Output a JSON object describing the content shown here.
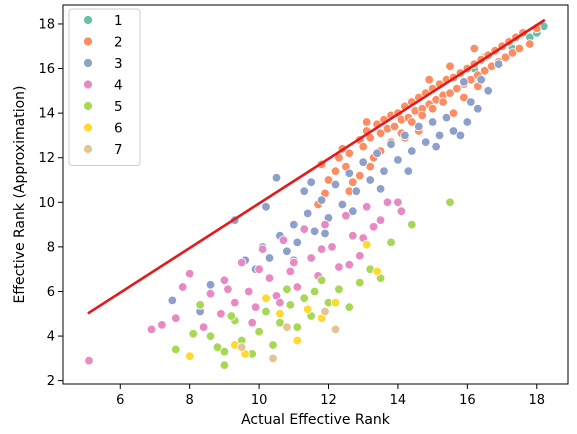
{
  "chart_data": {
    "type": "scatter",
    "xlabel": "Actual Effective Rank",
    "ylabel": "Effective Rank (Approximation)",
    "xlim": [
      4.35,
      18.9
    ],
    "ylim": [
      1.85,
      18.85
    ],
    "x_ticks": [
      6,
      8,
      10,
      12,
      14,
      16,
      18
    ],
    "y_ticks": [
      2,
      4,
      6,
      8,
      10,
      12,
      14,
      16,
      18
    ],
    "grid": false,
    "legend_position": "top-left",
    "series": [
      {
        "name": "1",
        "color": "#66c2a5",
        "points": [
          [
            16.2,
            16.0
          ],
          [
            16.5,
            16.5
          ],
          [
            17.3,
            16.9
          ],
          [
            17.8,
            17.4
          ],
          [
            18.0,
            17.6
          ],
          [
            18.2,
            17.9
          ]
        ]
      },
      {
        "name": "2",
        "color": "#fc8d62",
        "points": [
          [
            11.7,
            9.9
          ],
          [
            11.9,
            10.4
          ],
          [
            12.0,
            11.0
          ],
          [
            12.2,
            11.4
          ],
          [
            12.3,
            12.0
          ],
          [
            12.5,
            11.6
          ],
          [
            12.6,
            12.2
          ],
          [
            12.9,
            12.8
          ],
          [
            13.0,
            12.5
          ],
          [
            13.1,
            13.2
          ],
          [
            13.2,
            12.9
          ],
          [
            13.4,
            13.5
          ],
          [
            13.5,
            13.1
          ],
          [
            13.6,
            13.7
          ],
          [
            13.7,
            13.3
          ],
          [
            13.8,
            13.9
          ],
          [
            13.9,
            13.4
          ],
          [
            14.0,
            14.0
          ],
          [
            14.1,
            13.7
          ],
          [
            14.2,
            14.3
          ],
          [
            14.3,
            13.8
          ],
          [
            14.4,
            14.5
          ],
          [
            14.5,
            14.1
          ],
          [
            14.6,
            14.7
          ],
          [
            14.7,
            14.2
          ],
          [
            14.8,
            14.9
          ],
          [
            14.9,
            14.4
          ],
          [
            15.0,
            15.1
          ],
          [
            15.1,
            14.6
          ],
          [
            15.2,
            15.3
          ],
          [
            15.3,
            14.8
          ],
          [
            15.4,
            15.5
          ],
          [
            15.5,
            14.9
          ],
          [
            15.6,
            15.6
          ],
          [
            15.7,
            15.1
          ],
          [
            15.8,
            15.8
          ],
          [
            15.9,
            15.3
          ],
          [
            16.0,
            16.0
          ],
          [
            16.1,
            15.5
          ],
          [
            16.2,
            16.2
          ],
          [
            16.3,
            15.7
          ],
          [
            16.4,
            16.4
          ],
          [
            16.5,
            15.9
          ],
          [
            16.6,
            16.6
          ],
          [
            16.7,
            16.1
          ],
          [
            16.8,
            16.8
          ],
          [
            16.9,
            16.3
          ],
          [
            17.0,
            17.0
          ],
          [
            17.1,
            16.5
          ],
          [
            17.2,
            17.2
          ],
          [
            17.3,
            16.7
          ],
          [
            17.4,
            17.4
          ],
          [
            17.5,
            16.9
          ],
          [
            17.6,
            17.6
          ],
          [
            17.8,
            17.1
          ],
          [
            18.0,
            17.8
          ],
          [
            12.6,
            10.5
          ],
          [
            12.9,
            11.2
          ],
          [
            13.2,
            11.6
          ],
          [
            13.5,
            12.3
          ],
          [
            13.8,
            12.7
          ],
          [
            14.1,
            13.1
          ],
          [
            14.4,
            13.6
          ],
          [
            14.7,
            13.9
          ],
          [
            15.0,
            14.2
          ],
          [
            15.3,
            14.5
          ],
          [
            11.8,
            11.7
          ],
          [
            12.4,
            12.4
          ],
          [
            13.1,
            13.6
          ],
          [
            14.9,
            15.5
          ],
          [
            15.5,
            16.1
          ],
          [
            16.2,
            16.9
          ],
          [
            13.3,
            12.0
          ],
          [
            14.6,
            13.2
          ],
          [
            15.9,
            14.7
          ],
          [
            13.0,
            11.8
          ],
          [
            16.3,
            15.2
          ],
          [
            14.2,
            12.9
          ],
          [
            12.7,
            10.9
          ],
          [
            15.6,
            14.0
          ]
        ]
      },
      {
        "name": "3",
        "color": "#8da0cb",
        "points": [
          [
            7.5,
            5.6
          ],
          [
            7.8,
            6.2
          ],
          [
            8.3,
            5.1
          ],
          [
            8.6,
            6.3
          ],
          [
            9.0,
            6.5
          ],
          [
            9.3,
            9.2
          ],
          [
            9.6,
            7.4
          ],
          [
            9.9,
            7.0
          ],
          [
            10.1,
            8.0
          ],
          [
            10.3,
            7.5
          ],
          [
            10.5,
            11.1
          ],
          [
            10.6,
            8.5
          ],
          [
            10.8,
            7.8
          ],
          [
            11.0,
            9.0
          ],
          [
            11.1,
            8.2
          ],
          [
            11.3,
            10.5
          ],
          [
            11.4,
            9.5
          ],
          [
            11.6,
            8.7
          ],
          [
            11.8,
            10.1
          ],
          [
            12.0,
            9.3
          ],
          [
            12.2,
            10.8
          ],
          [
            12.4,
            9.9
          ],
          [
            12.6,
            11.3
          ],
          [
            12.8,
            10.5
          ],
          [
            13.0,
            11.8
          ],
          [
            13.2,
            11.0
          ],
          [
            13.4,
            12.2
          ],
          [
            13.6,
            11.4
          ],
          [
            13.8,
            12.6
          ],
          [
            14.0,
            11.9
          ],
          [
            14.2,
            13.0
          ],
          [
            14.4,
            12.3
          ],
          [
            14.6,
            13.4
          ],
          [
            14.8,
            12.7
          ],
          [
            15.0,
            13.6
          ],
          [
            15.2,
            13.0
          ],
          [
            15.4,
            13.8
          ],
          [
            15.6,
            13.2
          ],
          [
            15.8,
            13.0
          ],
          [
            16.0,
            13.6
          ],
          [
            16.3,
            14.2
          ],
          [
            16.6,
            15.0
          ],
          [
            11.0,
            7.4
          ],
          [
            11.9,
            8.6
          ],
          [
            12.7,
            9.6
          ],
          [
            13.5,
            10.6
          ],
          [
            14.3,
            11.4
          ],
          [
            15.1,
            12.5
          ],
          [
            16.1,
            14.5
          ],
          [
            15.9,
            15.4
          ],
          [
            16.4,
            15.5
          ],
          [
            16.9,
            16.2
          ],
          [
            10.2,
            9.8
          ],
          [
            11.5,
            10.9
          ]
        ]
      },
      {
        "name": "4",
        "color": "#e78ac3",
        "points": [
          [
            5.1,
            2.9
          ],
          [
            6.9,
            4.3
          ],
          [
            7.2,
            4.5
          ],
          [
            7.6,
            4.8
          ],
          [
            7.8,
            6.2
          ],
          [
            8.0,
            6.8
          ],
          [
            8.3,
            5.4
          ],
          [
            8.6,
            5.9
          ],
          [
            8.9,
            5.0
          ],
          [
            9.1,
            6.1
          ],
          [
            9.3,
            5.5
          ],
          [
            9.5,
            7.3
          ],
          [
            9.7,
            6.0
          ],
          [
            9.9,
            5.3
          ],
          [
            10.1,
            7.9
          ],
          [
            10.3,
            6.6
          ],
          [
            10.5,
            5.8
          ],
          [
            10.7,
            8.3
          ],
          [
            10.9,
            6.9
          ],
          [
            11.1,
            6.2
          ],
          [
            11.3,
            8.8
          ],
          [
            11.5,
            7.5
          ],
          [
            11.7,
            6.7
          ],
          [
            11.9,
            9.0
          ],
          [
            12.1,
            8.0
          ],
          [
            12.3,
            7.1
          ],
          [
            12.5,
            9.4
          ],
          [
            12.7,
            8.5
          ],
          [
            12.9,
            7.6
          ],
          [
            13.1,
            9.8
          ],
          [
            13.3,
            8.9
          ],
          [
            13.5,
            9.2
          ],
          [
            13.7,
            10.0
          ],
          [
            14.0,
            10.0
          ],
          [
            9.0,
            6.5
          ],
          [
            10.0,
            7.0
          ],
          [
            11.0,
            7.3
          ],
          [
            8.4,
            4.4
          ],
          [
            9.8,
            4.6
          ],
          [
            10.6,
            5.5
          ],
          [
            11.8,
            7.9
          ],
          [
            12.6,
            7.2
          ],
          [
            13.0,
            8.4
          ],
          [
            14.1,
            9.6
          ]
        ]
      },
      {
        "name": "5",
        "color": "#a6d854",
        "points": [
          [
            7.6,
            3.4
          ],
          [
            8.1,
            4.1
          ],
          [
            8.3,
            5.4
          ],
          [
            8.6,
            4.0
          ],
          [
            8.8,
            3.5
          ],
          [
            9.0,
            2.7
          ],
          [
            9.0,
            3.3
          ],
          [
            9.3,
            4.7
          ],
          [
            9.5,
            3.8
          ],
          [
            9.8,
            3.2
          ],
          [
            10.0,
            4.2
          ],
          [
            10.2,
            5.1
          ],
          [
            10.4,
            3.6
          ],
          [
            10.6,
            4.6
          ],
          [
            10.9,
            5.4
          ],
          [
            11.1,
            4.4
          ],
          [
            11.3,
            5.7
          ],
          [
            11.5,
            4.9
          ],
          [
            11.8,
            6.5
          ],
          [
            12.0,
            5.5
          ],
          [
            12.3,
            6.1
          ],
          [
            12.6,
            5.3
          ],
          [
            12.9,
            6.4
          ],
          [
            13.2,
            7.0
          ],
          [
            13.5,
            6.6
          ],
          [
            13.8,
            8.2
          ],
          [
            14.4,
            9.0
          ],
          [
            15.5,
            10.0
          ],
          [
            9.2,
            4.9
          ],
          [
            10.8,
            6.1
          ],
          [
            11.6,
            6.0
          ]
        ]
      },
      {
        "name": "6",
        "color": "#ffd92f",
        "points": [
          [
            8.0,
            3.1
          ],
          [
            9.3,
            3.6
          ],
          [
            9.6,
            3.2
          ],
          [
            10.2,
            5.7
          ],
          [
            10.6,
            5.0
          ],
          [
            11.1,
            3.8
          ],
          [
            11.4,
            5.2
          ],
          [
            11.8,
            4.8
          ],
          [
            12.2,
            5.5
          ],
          [
            13.1,
            8.1
          ],
          [
            13.4,
            6.9
          ]
        ]
      },
      {
        "name": "7",
        "color": "#e5c494",
        "points": [
          [
            9.5,
            3.5
          ],
          [
            10.4,
            3.0
          ],
          [
            10.8,
            4.4
          ],
          [
            11.9,
            5.1
          ],
          [
            12.2,
            4.3
          ]
        ]
      }
    ],
    "fit_line": {
      "color": "#e31a1c",
      "x": [
        5.1,
        18.2
      ],
      "y": [
        5.05,
        18.15
      ]
    }
  }
}
